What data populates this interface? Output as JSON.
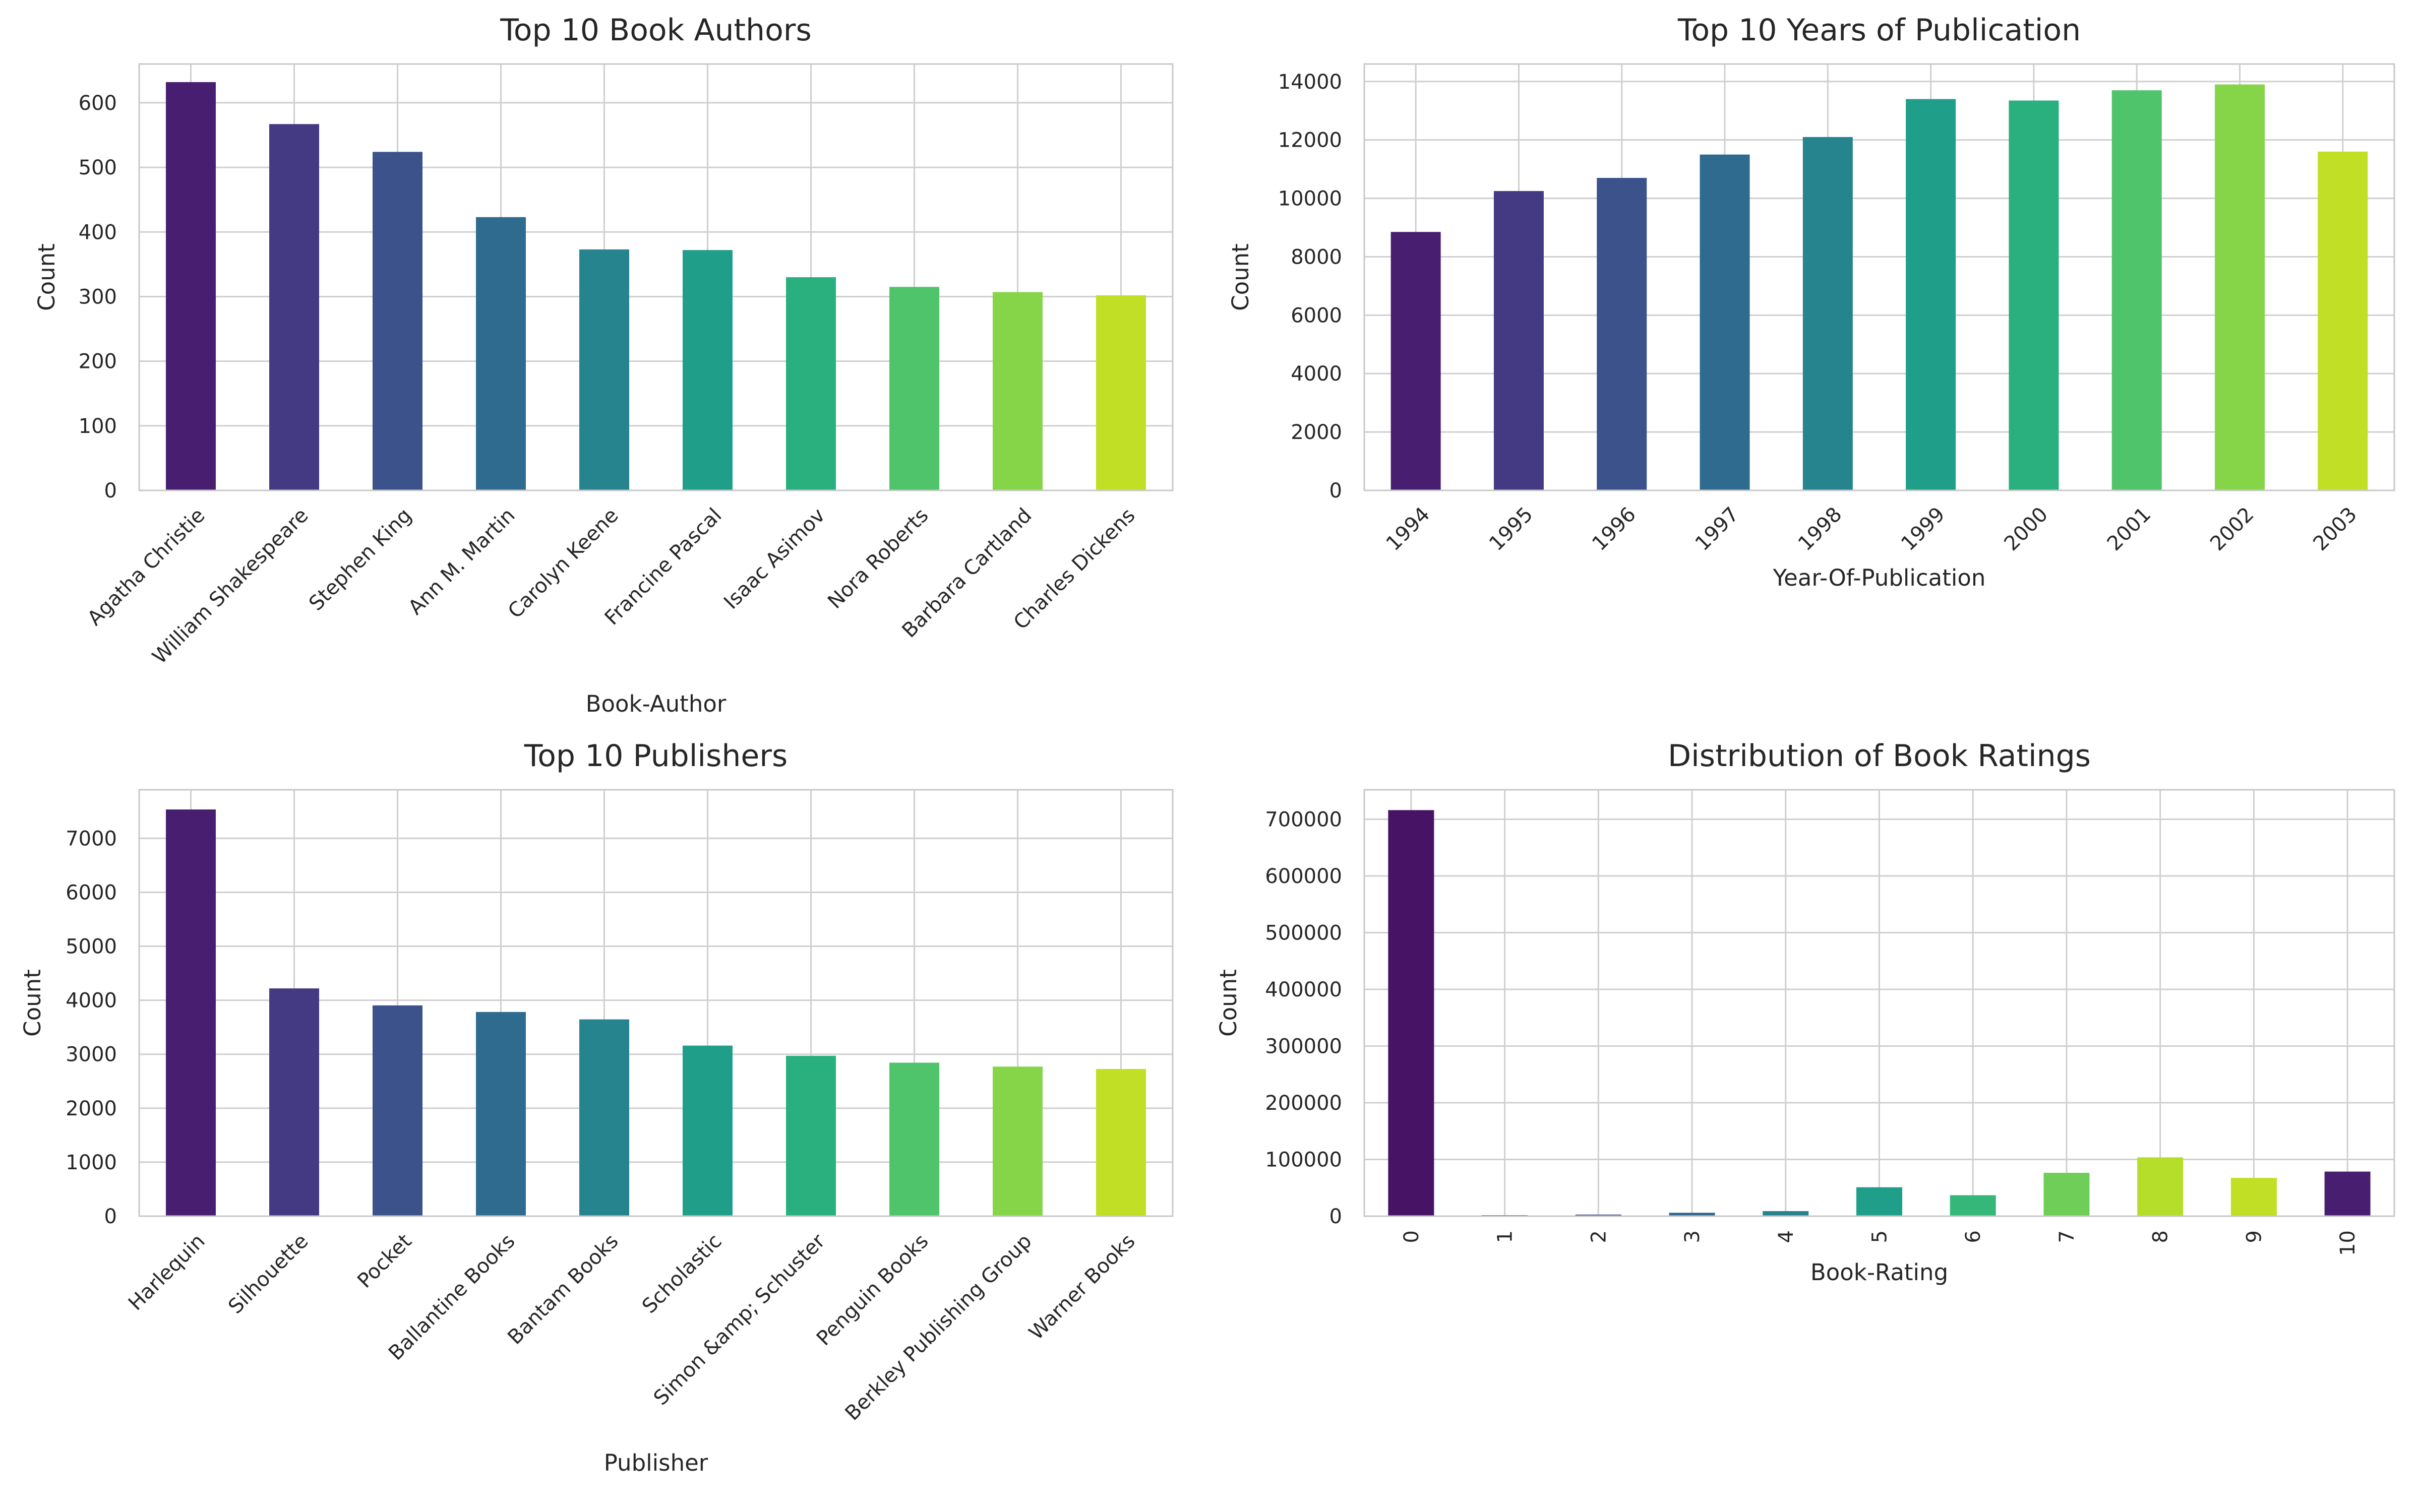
{
  "colors": {
    "background": "#ffffff",
    "grid": "#cfcfcf",
    "frame": "#c8c8c8",
    "text": "#262626",
    "palette": [
      "#481f70",
      "#443983",
      "#3b528b",
      "#2f6b8e",
      "#25848e",
      "#1f9e89",
      "#2ab07f",
      "#50c46a",
      "#86d549",
      "#c0df25"
    ],
    "ratings_palette": [
      "#471365",
      "#482878",
      "#3e4989",
      "#31688e",
      "#26828e",
      "#1f9e89",
      "#35b779",
      "#6ece58",
      "#b5de2b",
      "#c0df25",
      "#481f70"
    ]
  },
  "chart_data": [
    {
      "id": "authors",
      "type": "bar",
      "title": "Top 10 Book Authors",
      "xlabel": "Book-Author",
      "ylabel": "Count",
      "categories": [
        "Agatha Christie",
        "William Shakespeare",
        "Stephen King",
        "Ann M. Martin",
        "Carolyn Keene",
        "Francine Pascal",
        "Isaac Asimov",
        "Nora Roberts",
        "Barbara Cartland",
        "Charles Dickens"
      ],
      "values": [
        632,
        567,
        524,
        423,
        373,
        372,
        330,
        315,
        307,
        302
      ],
      "ylim": [
        0,
        660
      ],
      "yticks": [
        0,
        100,
        200,
        300,
        400,
        500,
        600
      ],
      "xtick_rotation": 45,
      "grid": true
    },
    {
      "id": "years",
      "type": "bar",
      "title": "Top 10 Years of Publication",
      "xlabel": "Year-Of-Publication",
      "ylabel": "Count",
      "categories": [
        "1994",
        "1995",
        "1996",
        "1997",
        "1998",
        "1999",
        "2000",
        "2001",
        "2002",
        "2003"
      ],
      "values": [
        8850,
        10250,
        10700,
        11500,
        12100,
        13400,
        13350,
        13700,
        13900,
        11600
      ],
      "ylim": [
        0,
        14600
      ],
      "yticks": [
        0,
        2000,
        4000,
        6000,
        8000,
        10000,
        12000,
        14000
      ],
      "xtick_rotation": 45,
      "grid": true
    },
    {
      "id": "publishers",
      "type": "bar",
      "title": "Top 10 Publishers",
      "xlabel": "Publisher",
      "ylabel": "Count",
      "categories": [
        "Harlequin",
        "Silhouette",
        "Pocket",
        "Ballantine Books",
        "Bantam Books",
        "Scholastic",
        "Simon &amp; Schuster",
        "Penguin Books",
        "Berkley Publishing Group",
        "Warner Books"
      ],
      "values": [
        7535,
        4220,
        3905,
        3783,
        3646,
        3160,
        2971,
        2844,
        2771,
        2727
      ],
      "ylim": [
        0,
        7900
      ],
      "yticks": [
        0,
        1000,
        2000,
        3000,
        4000,
        5000,
        6000,
        7000
      ],
      "xtick_rotation": 45,
      "grid": true
    },
    {
      "id": "ratings",
      "type": "bar",
      "title": "Distribution of Book Ratings",
      "xlabel": "Book-Rating",
      "ylabel": "Count",
      "categories": [
        "0",
        "1",
        "2",
        "3",
        "4",
        "5",
        "6",
        "7",
        "8",
        "9",
        "10"
      ],
      "values": [
        716109,
        1770,
        2759,
        5996,
        8904,
        50974,
        36924,
        76457,
        103736,
        67541,
        78610
      ],
      "ylim": [
        0,
        752000
      ],
      "yticks": [
        0,
        100000,
        200000,
        300000,
        400000,
        500000,
        600000,
        700000
      ],
      "xtick_rotation": 90,
      "grid": true
    }
  ]
}
